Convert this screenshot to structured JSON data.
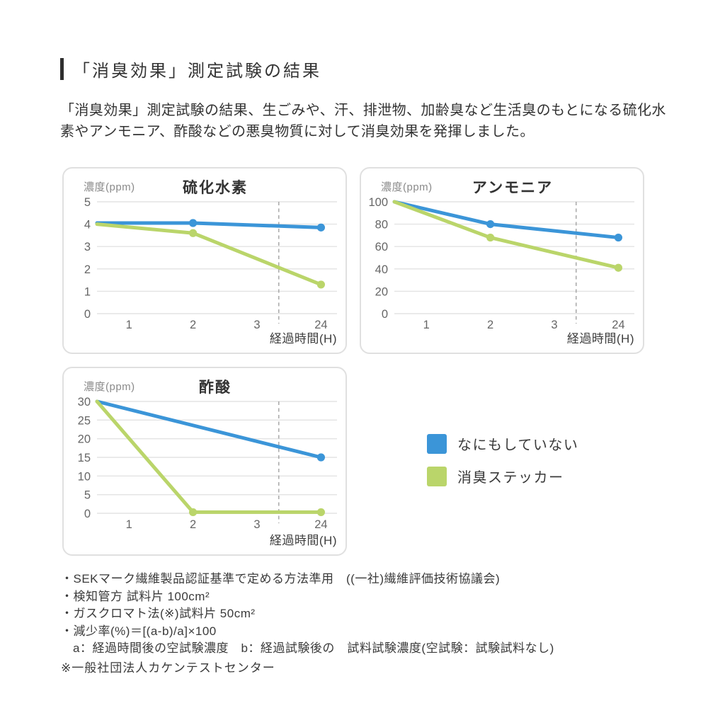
{
  "page": {
    "title": "「消臭効果」測定試験の結果",
    "description": "「消臭効果」測定試験の結果、生ごみや、汗、排泄物、加齢臭など生活臭のもとになる硫化水素やアンモニア、酢酸などの悪臭物質に対して消臭効果を発揮しました。"
  },
  "colors": {
    "blue": "#3B95D8",
    "green": "#BAD56A",
    "grid": "#E3E3E3",
    "dashed": "#ABABAB",
    "panel_border": "#E0E0E0"
  },
  "legend": {
    "items": [
      {
        "label": "なにもしていない",
        "color_key": "blue"
      },
      {
        "label": "消臭ステッカー",
        "color_key": "green"
      }
    ]
  },
  "chart_data": [
    {
      "type": "line",
      "title": "硫化水素",
      "ylabel": "濃度(ppm)",
      "xlabel": "経過時間(H)",
      "categories": [
        "1",
        "2",
        "3",
        "24"
      ],
      "ylim": [
        0,
        5
      ],
      "yticks": [
        0,
        1,
        2,
        3,
        4,
        5
      ],
      "grid": true,
      "dashed_divider": true,
      "legend_position": "outside-right",
      "series": [
        {
          "name": "なにもしていない",
          "color_key": "blue",
          "points": [
            {
              "x": 0,
              "y": 4.05
            },
            {
              "x": 2,
              "y": 4.05
            },
            {
              "x": 24,
              "y": 3.85
            }
          ]
        },
        {
          "name": "消臭ステッカー",
          "color_key": "green",
          "points": [
            {
              "x": 0,
              "y": 4.0
            },
            {
              "x": 2,
              "y": 3.6
            },
            {
              "x": 24,
              "y": 1.3
            }
          ]
        }
      ]
    },
    {
      "type": "line",
      "title": "アンモニア",
      "ylabel": "濃度(ppm)",
      "xlabel": "経過時間(H)",
      "categories": [
        "1",
        "2",
        "3",
        "24"
      ],
      "ylim": [
        0,
        100
      ],
      "yticks": [
        0,
        20,
        40,
        60,
        80,
        100
      ],
      "grid": true,
      "dashed_divider": true,
      "legend_position": "outside-right",
      "series": [
        {
          "name": "なにもしていない",
          "color_key": "blue",
          "points": [
            {
              "x": 0,
              "y": 100
            },
            {
              "x": 2,
              "y": 80
            },
            {
              "x": 24,
              "y": 68
            }
          ]
        },
        {
          "name": "消臭ステッカー",
          "color_key": "green",
          "points": [
            {
              "x": 0,
              "y": 100
            },
            {
              "x": 2,
              "y": 68
            },
            {
              "x": 24,
              "y": 41
            }
          ]
        }
      ]
    },
    {
      "type": "line",
      "title": "酢酸",
      "ylabel": "濃度(ppm)",
      "xlabel": "経過時間(H)",
      "categories": [
        "1",
        "2",
        "3",
        "24"
      ],
      "ylim": [
        0,
        30
      ],
      "yticks": [
        0,
        5,
        10,
        15,
        20,
        25,
        30
      ],
      "grid": true,
      "dashed_divider": true,
      "legend_position": "outside-right",
      "series": [
        {
          "name": "なにもしていない",
          "color_key": "blue",
          "points": [
            {
              "x": 0,
              "y": 30
            },
            {
              "x": 24,
              "y": 15
            }
          ]
        },
        {
          "name": "消臭ステッカー",
          "color_key": "green",
          "points": [
            {
              "x": 0,
              "y": 30
            },
            {
              "x": 2,
              "y": 0.3
            },
            {
              "x": 24,
              "y": 0.3
            }
          ]
        }
      ]
    }
  ],
  "footnotes": {
    "items": [
      {
        "text": "・SEKマーク繊維製品認証基準で定める方法準用　((一社)繊維評価技術協議会)"
      },
      {
        "text": "・検知管方 試料片 100cm²"
      },
      {
        "text": "・ガスクロマト法(※)試料片 50cm²"
      },
      {
        "text": "・減少率(%)＝[(a-b)/a]×100"
      },
      {
        "text": "a：経過時間後の空試験濃度　b：経過試験後の　試料試験濃度(空試験：試験試料なし)"
      }
    ],
    "note": "※一般社団法人カケンテストセンター"
  }
}
